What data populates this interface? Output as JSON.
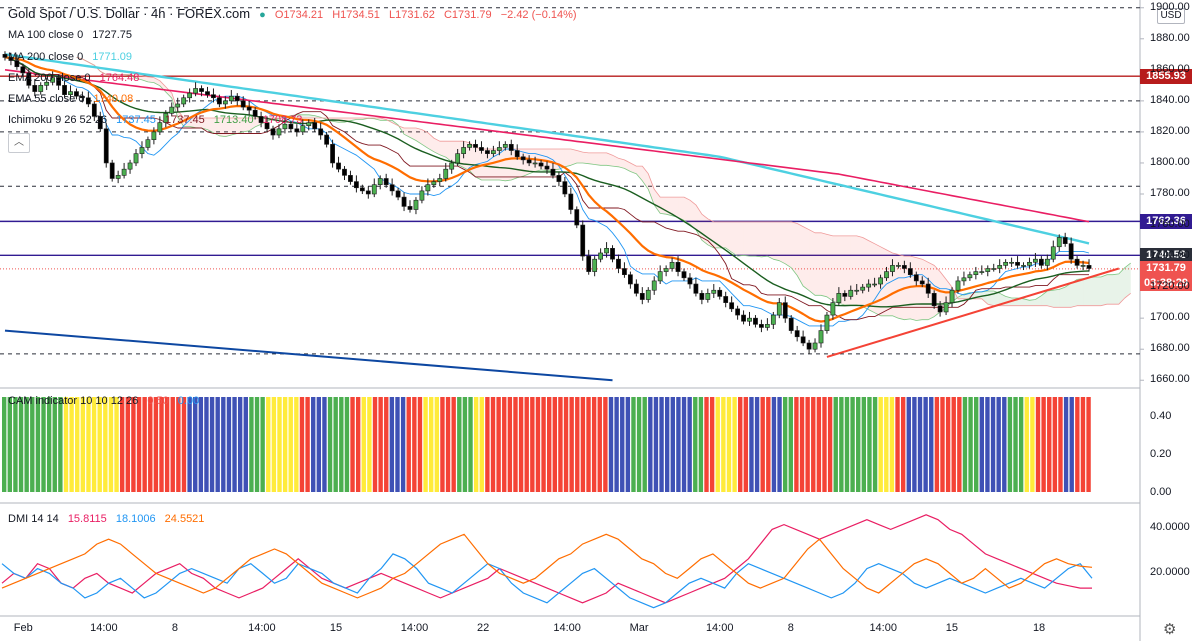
{
  "header": {
    "title": "Gold Spot / U.S. Dollar · 4h · FOREX.com",
    "open": "O1734.21",
    "high": "H1734.51",
    "low": "L1731.62",
    "close": "C1731.79",
    "change": "−2.42 (−0.14%)"
  },
  "indicators": [
    {
      "label": "MA 100 close 0",
      "value": "1727.75",
      "color": "#000000"
    },
    {
      "label": "MA 200 close 0",
      "value": "1771.09",
      "color": "#4dd0e1"
    },
    {
      "label": "EMA 200 close 0",
      "value": "1764.48",
      "color": "#e91e63"
    },
    {
      "label": "EMA 55 close 0",
      "value": "1740.08",
      "color": "#ff6d00"
    }
  ],
  "ichimoku": {
    "label": "Ichimoku 9 26 52 26",
    "values": [
      "1737.45",
      "1737.45",
      "1713.40",
      "1708.73"
    ],
    "colors": [
      "#2196f3",
      "#801922",
      "#43a047",
      "#e91e63"
    ]
  },
  "currency_badge": "USD",
  "price_tags": [
    {
      "text": "1855.93",
      "price": 1855.93,
      "color": "#b71c1c"
    },
    {
      "text": "1762.36",
      "price": 1762.36,
      "color": "#311b92"
    },
    {
      "text": "1740.52",
      "price": 1740.52,
      "color": "#2a2e39"
    },
    {
      "text": "1731.79",
      "price": 1731.79,
      "color": "#ef5350"
    }
  ],
  "countdown": "03:38:29",
  "price_axis": [
    "1900.00",
    "1880.00",
    "1860.00",
    "1840.00",
    "1820.00",
    "1800.00",
    "1780.00",
    "1760.00",
    "1740.00",
    "1720.00",
    "1700.00",
    "1680.00",
    "1660.00"
  ],
  "cam": {
    "label": "CAM indicator 10 10 12 26",
    "values": [
      "0.50",
      "0.00"
    ],
    "colors": [
      "#ef5350",
      "#2196f3"
    ],
    "axis": [
      "0.40",
      "0.20",
      "0.00"
    ]
  },
  "dmi": {
    "label": "DMI 14 14",
    "values": [
      "15.8115",
      "18.1006",
      "24.5521"
    ],
    "colors": [
      "#e91e63",
      "#2196f3",
      "#ff6d00"
    ],
    "axis": [
      "40.0000",
      "20.0000"
    ]
  },
  "time_axis": [
    "Feb",
    "14:00",
    "8",
    "14:00",
    "15",
    "14:00",
    "22",
    "14:00",
    "Mar",
    "14:00",
    "8",
    "14:00",
    "15",
    "18"
  ],
  "chart_data": {
    "type": "candlestick",
    "symbol": "Gold Spot / U.S. Dollar",
    "interval": "4h",
    "ylim": [
      1655,
      1905
    ],
    "closes": [
      1868,
      1866,
      1862,
      1858,
      1850,
      1846,
      1850,
      1852,
      1855,
      1850,
      1844,
      1846,
      1843,
      1842,
      1838,
      1830,
      1822,
      1800,
      1790,
      1792,
      1796,
      1800,
      1806,
      1810,
      1815,
      1820,
      1826,
      1832,
      1836,
      1838,
      1842,
      1845,
      1848,
      1846,
      1844,
      1842,
      1838,
      1840,
      1843,
      1840,
      1836,
      1834,
      1830,
      1826,
      1822,
      1818,
      1822,
      1825,
      1822,
      1820,
      1824,
      1826,
      1822,
      1818,
      1812,
      1800,
      1796,
      1792,
      1788,
      1784,
      1782,
      1780,
      1786,
      1790,
      1786,
      1782,
      1778,
      1772,
      1770,
      1776,
      1782,
      1786,
      1788,
      1790,
      1796,
      1800,
      1806,
      1810,
      1812,
      1810,
      1808,
      1806,
      1808,
      1810,
      1812,
      1808,
      1804,
      1802,
      1800,
      1800,
      1798,
      1796,
      1792,
      1788,
      1780,
      1770,
      1760,
      1740,
      1730,
      1738,
      1742,
      1745,
      1738,
      1732,
      1728,
      1722,
      1716,
      1712,
      1718,
      1724,
      1730,
      1732,
      1736,
      1730,
      1726,
      1722,
      1716,
      1712,
      1716,
      1718,
      1714,
      1710,
      1706,
      1702,
      1698,
      1700,
      1696,
      1694,
      1696,
      1702,
      1710,
      1700,
      1692,
      1688,
      1684,
      1680,
      1684,
      1692,
      1702,
      1710,
      1716,
      1714,
      1718,
      1718,
      1720,
      1722,
      1722,
      1726,
      1730,
      1734,
      1734,
      1732,
      1728,
      1724,
      1722,
      1716,
      1708,
      1704,
      1710,
      1718,
      1724,
      1726,
      1728,
      1730,
      1730,
      1732,
      1732,
      1734,
      1736,
      1736,
      1734,
      1734,
      1736,
      1738,
      1734,
      1738,
      1746,
      1752,
      1748,
      1738,
      1734,
      1734,
      1732
    ],
    "horizontal_levels": [
      1900,
      1855.93,
      1840,
      1820,
      1785,
      1762.36,
      1740.52,
      1731.79,
      1677
    ],
    "trendlines": [
      {
        "name": "support",
        "from": [
          138,
          1675
        ],
        "to": [
          187,
          1732
        ]
      },
      {
        "name": "long-term",
        "from": [
          0,
          1692
        ],
        "to": [
          102,
          1660
        ]
      }
    ],
    "cam_colors": [
      "green",
      "green",
      "green",
      "green",
      "green",
      "green",
      "green",
      "green",
      "green",
      "green",
      "green",
      "yellow",
      "yellow",
      "yellow",
      "yellow",
      "yellow",
      "yellow",
      "yellow",
      "yellow",
      "yellow",
      "yellow",
      "red",
      "red",
      "red",
      "red",
      "red",
      "red",
      "red",
      "red",
      "red",
      "red",
      "red",
      "red",
      "blue",
      "blue",
      "blue",
      "blue",
      "blue",
      "blue",
      "blue",
      "blue",
      "blue",
      "blue",
      "blue",
      "green",
      "green",
      "green",
      "yellow",
      "yellow",
      "yellow",
      "yellow",
      "yellow",
      "yellow",
      "red",
      "red",
      "blue",
      "blue",
      "blue",
      "green",
      "green",
      "green",
      "green",
      "red",
      "red",
      "yellow",
      "yellow",
      "red",
      "red",
      "red",
      "blue",
      "blue",
      "blue",
      "red",
      "red",
      "red",
      "yellow",
      "yellow",
      "yellow",
      "red",
      "red",
      "red",
      "green",
      "green",
      "green",
      "yellow",
      "yellow",
      "red",
      "red",
      "red",
      "red",
      "red",
      "red",
      "red",
      "red",
      "red",
      "red",
      "red",
      "red",
      "red",
      "red",
      "red",
      "red",
      "red",
      "red",
      "red",
      "red",
      "red",
      "red",
      "blue",
      "blue",
      "blue",
      "blue",
      "green",
      "green",
      "green",
      "blue",
      "blue",
      "blue",
      "blue",
      "blue",
      "blue",
      "blue",
      "blue",
      "green",
      "green",
      "red",
      "red",
      "yellow",
      "yellow",
      "yellow",
      "yellow",
      "red",
      "red",
      "blue",
      "blue",
      "red",
      "red",
      "blue",
      "blue",
      "green",
      "green",
      "red",
      "red",
      "red",
      "red",
      "red",
      "red",
      "red",
      "green",
      "green",
      "green",
      "green",
      "green",
      "green",
      "green",
      "green",
      "yellow",
      "yellow",
      "yellow",
      "red",
      "red",
      "blue",
      "blue",
      "blue",
      "blue",
      "blue",
      "red",
      "red",
      "red",
      "red",
      "red",
      "green",
      "green",
      "green",
      "blue",
      "blue",
      "blue",
      "blue",
      "blue",
      "green",
      "green",
      "green",
      "yellow",
      "yellow",
      "red",
      "red",
      "red",
      "red",
      "red",
      "blue",
      "blue",
      "red",
      "red",
      "red"
    ],
    "dmi_plus": [
      18,
      22,
      20,
      26,
      24,
      18,
      16,
      20,
      22,
      18,
      16,
      14,
      18,
      22,
      24,
      26,
      22,
      20,
      16,
      14,
      12,
      14,
      16,
      20,
      24,
      28,
      24,
      20,
      18,
      16,
      18,
      20,
      22,
      20,
      18,
      16,
      14,
      12,
      14,
      16,
      18,
      20,
      24,
      22,
      20,
      18,
      16,
      14,
      12,
      10,
      12,
      14,
      18,
      16,
      14,
      12,
      10,
      12,
      14,
      16,
      18,
      20,
      24,
      28,
      34,
      40,
      42,
      40,
      38,
      36,
      38,
      40,
      42,
      44,
      42,
      40,
      42,
      44,
      46,
      44,
      40,
      38,
      34,
      30,
      28,
      26,
      24,
      22,
      20,
      18,
      17,
      16,
      16
    ],
    "dmi_minus": [
      26,
      22,
      20,
      24,
      22,
      18,
      16,
      12,
      14,
      18,
      20,
      16,
      12,
      14,
      18,
      22,
      24,
      22,
      20,
      18,
      24,
      26,
      22,
      18,
      20,
      26,
      24,
      22,
      18,
      16,
      14,
      20,
      24,
      30,
      28,
      24,
      18,
      16,
      14,
      18,
      22,
      26,
      24,
      18,
      14,
      12,
      10,
      14,
      18,
      22,
      24,
      20,
      16,
      12,
      10,
      8,
      10,
      14,
      18,
      20,
      18,
      16,
      22,
      26,
      24,
      22,
      20,
      18,
      16,
      14,
      12,
      14,
      18,
      24,
      26,
      24,
      22,
      18,
      16,
      18,
      20,
      18,
      16,
      14,
      16,
      18,
      20,
      18,
      16,
      20,
      24,
      26,
      20
    ],
    "adx": [
      16,
      18,
      20,
      22,
      24,
      26,
      28,
      30,
      34,
      36,
      34,
      30,
      26,
      22,
      20,
      18,
      16,
      14,
      16,
      20,
      24,
      28,
      30,
      32,
      30,
      26,
      22,
      18,
      16,
      14,
      12,
      14,
      16,
      20,
      22,
      26,
      30,
      34,
      36,
      38,
      32,
      26,
      22,
      20,
      18,
      20,
      24,
      28,
      30,
      34,
      36,
      38,
      36,
      32,
      28,
      26,
      22,
      20,
      24,
      28,
      30,
      26,
      22,
      18,
      16,
      18,
      20,
      26,
      32,
      36,
      30,
      24,
      20,
      16,
      14,
      18,
      22,
      26,
      28,
      26,
      22,
      18,
      20,
      24,
      20,
      16,
      18,
      22,
      26,
      28,
      26,
      25,
      24.5
    ]
  }
}
